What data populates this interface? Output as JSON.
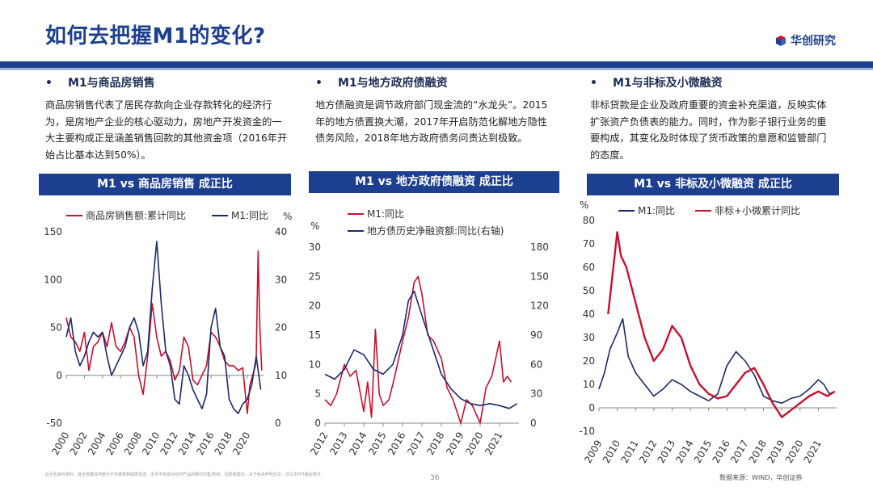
{
  "header": {
    "title": "如何去把握M1的变化?",
    "logo_text": "华创研究",
    "colors": {
      "brand": "#1d3f8f",
      "series_red": "#c8102e",
      "series_blue": "#1b2a6b"
    }
  },
  "columns": [
    {
      "heading_bullet": "•",
      "heading": "M1与商品房销售",
      "paragraph": "商品房销售代表了居民存款向企业存款转化的经济行为，是房地产企业的核心驱动力，房地产开发资金的一大主要构成正是涵盖销售回款的其他资金项（2016年开始占比基本达到50%）。",
      "chart_title": "M1 vs 商品房销售 成正比"
    },
    {
      "heading_bullet": "•",
      "heading": "M1与地方政府债融资",
      "paragraph": "地方债融资是调节政府部门现金流的“水龙头”。2015年的地方债置换大潮，2017年开启防范化解地方隐性债务风险，2018年地方政府债务问责达到极致。",
      "chart_title": "M1 vs 地方政府债融资 成正比"
    },
    {
      "heading_bullet": "•",
      "heading": "M1与非标及小微融资",
      "paragraph": "非标贷款是企业及政府重要的资金补充渠道，反映实体扩张资产负债表的能力。同时，作为影子银行业务的重要构成，其变化及时体现了货币政策的意愿和监管部门的态度。",
      "chart_title": "M1 vs 非标及小微融资 成正比"
    }
  ],
  "chart_data": [
    {
      "type": "line",
      "title": "M1 vs 商品房销售 成正比",
      "legend": [
        "商品房销售额:累计同比",
        "M1:同比"
      ],
      "y_left": {
        "ticks": [
          "150",
          "100",
          "50",
          "0",
          "-50"
        ],
        "range": [
          -50,
          150
        ]
      },
      "y_right": {
        "unit": "%",
        "ticks": [
          "40",
          "30",
          "20",
          "10",
          "0"
        ],
        "range": [
          0,
          40
        ]
      },
      "x_ticks": [
        "2000",
        "2002",
        "2004",
        "2006",
        "2008",
        "2010",
        "2012",
        "2014",
        "2016",
        "2018",
        "2020"
      ],
      "series": [
        {
          "name": "商品房销售额:累计同比",
          "axis": "left",
          "color": "#c8102e",
          "x": [
            2000.0,
            2000.5,
            2001.0,
            2001.5,
            2002.0,
            2002.5,
            2003.0,
            2003.5,
            2004.0,
            2004.5,
            2005.0,
            2005.5,
            2006.0,
            2006.5,
            2007.0,
            2007.5,
            2008.0,
            2008.5,
            2009.0,
            2009.5,
            2010.0,
            2010.5,
            2011.0,
            2011.5,
            2012.0,
            2012.5,
            2013.0,
            2013.5,
            2014.0,
            2014.5,
            2015.0,
            2015.5,
            2016.0,
            2016.5,
            2017.0,
            2017.5,
            2018.0,
            2018.5,
            2019.0,
            2019.5,
            2020.0,
            2020.3,
            2020.6,
            2020.9,
            2021.0,
            2021.2,
            2021.4,
            2021.6
          ],
          "values": [
            60,
            40,
            35,
            25,
            45,
            5,
            30,
            35,
            45,
            30,
            55,
            30,
            25,
            35,
            50,
            40,
            0,
            -20,
            20,
            75,
            40,
            20,
            25,
            15,
            -5,
            5,
            40,
            30,
            -5,
            -10,
            0,
            10,
            45,
            40,
            30,
            15,
            10,
            10,
            5,
            8,
            -40,
            -10,
            0,
            10,
            20,
            130,
            50,
            5
          ]
        },
        {
          "name": "M1:同比",
          "axis": "right",
          "color": "#1b2a6b",
          "x": [
            2000.0,
            2000.5,
            2001.0,
            2001.5,
            2002.0,
            2002.5,
            2003.0,
            2003.5,
            2004.0,
            2004.5,
            2005.0,
            2005.5,
            2006.0,
            2006.5,
            2007.0,
            2007.5,
            2008.0,
            2008.5,
            2009.0,
            2009.5,
            2010.0,
            2010.5,
            2011.0,
            2011.5,
            2012.0,
            2012.5,
            2013.0,
            2013.5,
            2014.0,
            2014.5,
            2015.0,
            2015.5,
            2016.0,
            2016.5,
            2017.0,
            2017.5,
            2018.0,
            2018.5,
            2019.0,
            2019.5,
            2020.0,
            2020.5,
            2021.0,
            2021.5
          ],
          "values": [
            18,
            22,
            15,
            12,
            14,
            17,
            19,
            18,
            19,
            14,
            10,
            12,
            14,
            16,
            20,
            22,
            19,
            12,
            15,
            28,
            38,
            25,
            15,
            12,
            5,
            4,
            12,
            10,
            7,
            5,
            3,
            6,
            20,
            24,
            16,
            14,
            5,
            3,
            2,
            4,
            5,
            8,
            14,
            7
          ]
        }
      ]
    },
    {
      "type": "line",
      "title": "M1 vs 地方政府债融资 成正比",
      "legend": [
        "M1:同比",
        "地方债历史净融资额:同比(右轴)"
      ],
      "y_left": {
        "unit": "%",
        "ticks": [
          "30",
          "25",
          "20",
          "15",
          "10",
          "5",
          "0"
        ],
        "range": [
          0,
          30
        ]
      },
      "y_right": {
        "ticks": [
          "180",
          "150",
          "120",
          "90",
          "60",
          "30",
          "0"
        ],
        "range": [
          0,
          180
        ]
      },
      "x_ticks": [
        "2012",
        "2013",
        "2014",
        "2015",
        "2016",
        "2017",
        "2018",
        "2019",
        "2020",
        "2021"
      ],
      "series": [
        {
          "name": "M1:同比",
          "axis": "left",
          "color": "#c8102e",
          "x": [
            2012.0,
            2012.3,
            2012.6,
            2013.0,
            2013.3,
            2013.6,
            2014.0,
            2014.2,
            2014.4,
            2014.6,
            2014.8,
            2015.0,
            2015.3,
            2015.6,
            2016.0,
            2016.3,
            2016.6,
            2016.8,
            2017.0,
            2017.3,
            2017.6,
            2018.0,
            2018.3,
            2018.6,
            2019.0,
            2019.3,
            2019.6,
            2020.0,
            2020.3,
            2020.6,
            2021.0,
            2021.2,
            2021.4,
            2021.6
          ],
          "values": [
            4,
            3,
            5,
            10,
            8,
            9,
            2,
            7,
            1,
            16,
            5,
            3,
            4,
            8,
            14,
            18,
            24,
            25,
            22,
            15,
            14,
            11,
            6,
            4,
            0,
            4,
            3,
            0,
            6,
            8,
            14,
            7,
            8,
            7
          ]
        },
        {
          "name": "地方债历史净融资额:同比(右轴)",
          "axis": "right",
          "color": "#1b2a6b",
          "x": [
            2012.0,
            2012.5,
            2013.0,
            2013.5,
            2014.0,
            2014.5,
            2015.0,
            2015.5,
            2016.0,
            2016.3,
            2016.6,
            2017.0,
            2017.5,
            2018.0,
            2018.5,
            2019.0,
            2019.5,
            2020.0,
            2020.5,
            2021.0,
            2021.5,
            2021.9
          ],
          "values": [
            50,
            45,
            55,
            75,
            70,
            55,
            50,
            60,
            90,
            125,
            135,
            110,
            80,
            50,
            35,
            25,
            20,
            18,
            20,
            18,
            15,
            20
          ]
        }
      ]
    },
    {
      "type": "line",
      "title": "M1 vs 非标及小微融资 成正比",
      "legend": [
        "M1:同比",
        "非标+小微累计同比"
      ],
      "y_left": {
        "unit": "%",
        "ticks": [
          "80",
          "70",
          "60",
          "50",
          "40",
          "30",
          "20",
          "10",
          "0",
          "-10"
        ],
        "range": [
          -10,
          80
        ]
      },
      "x_ticks": [
        "2009",
        "2010",
        "2011",
        "2012",
        "2013",
        "2014",
        "2015",
        "2016",
        "2017",
        "2018",
        "2019",
        "2020",
        "2021"
      ],
      "series": [
        {
          "name": "M1:同比",
          "axis": "left",
          "color": "#1b2a6b",
          "x": [
            2009.0,
            2009.3,
            2009.6,
            2010.0,
            2010.3,
            2010.6,
            2011.0,
            2011.5,
            2012.0,
            2012.5,
            2013.0,
            2013.5,
            2014.0,
            2014.5,
            2015.0,
            2015.5,
            2016.0,
            2016.5,
            2017.0,
            2017.5,
            2018.0,
            2018.5,
            2019.0,
            2019.5,
            2020.0,
            2020.5,
            2021.0,
            2021.3,
            2021.6,
            2021.9
          ],
          "values": [
            8,
            15,
            25,
            32,
            38,
            22,
            15,
            10,
            5,
            8,
            12,
            10,
            7,
            5,
            3,
            6,
            18,
            24,
            20,
            14,
            5,
            3,
            2,
            4,
            5,
            8,
            12,
            10,
            6,
            7
          ]
        },
        {
          "name": "非标+小微累计同比",
          "axis": "left",
          "color": "#c8102e",
          "x": [
            2009.5,
            2010.0,
            2010.2,
            2010.5,
            2011.0,
            2011.5,
            2012.0,
            2012.5,
            2013.0,
            2013.5,
            2014.0,
            2014.5,
            2015.0,
            2015.5,
            2016.0,
            2016.5,
            2017.0,
            2017.5,
            2018.0,
            2018.5,
            2019.0,
            2019.5,
            2020.0,
            2020.5,
            2021.0,
            2021.5,
            2021.9
          ],
          "values": [
            40,
            75,
            65,
            60,
            45,
            30,
            20,
            25,
            35,
            30,
            18,
            10,
            6,
            4,
            5,
            10,
            15,
            17,
            10,
            2,
            -4,
            -1,
            2,
            5,
            7,
            5,
            7
          ]
        }
      ]
    }
  ],
  "footer": {
    "disclaimer": "此页包含的资料、其全部或任何部分不可被复制或再发送。本页不构成对任何产品的要约出售/购买、招揽或建议。关于免责声明全文，详见本PPT最后部分。",
    "page_number": "36",
    "source": "数据来源：WIND，华创证券"
  }
}
